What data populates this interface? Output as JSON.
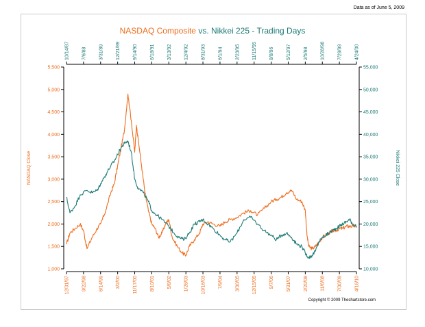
{
  "header": {
    "as_of": "Data as of June 5, 2009",
    "title_part1": "NASDAQ Composite",
    "title_part2": "vs. Nikkei 225 - Trading Days"
  },
  "footer": {
    "copyright": "Copyright © 2009 Thechartstore.com"
  },
  "colors": {
    "nasdaq": "#ef6b1a",
    "nikkei": "#1b7a75",
    "axis": "#000000"
  },
  "chart_data": {
    "type": "line",
    "title": "NASDAQ Composite vs. Nikkei 225 - Trading Days",
    "ylabel_left": "NASDAQ Close",
    "ylabel_right": "Nikkei 225 Close",
    "ylim_left": [
      1000,
      5500
    ],
    "ylim_right": [
      10000,
      55000
    ],
    "yticks_left": [
      "1,000",
      "1,500",
      "2,000",
      "2,500",
      "3,000",
      "3,500",
      "4,000",
      "4,500",
      "5,000",
      "5,500"
    ],
    "yticks_right": [
      "10,000",
      "15,000",
      "20,000",
      "25,000",
      "30,000",
      "35,000",
      "40,000",
      "45,000",
      "50,000",
      "55,000"
    ],
    "xticks_top": [
      "10/14/87",
      "7/6/88",
      "3/31/89",
      "12/21/89",
      "9/14/90",
      "6/18/91",
      "3/13/92",
      "12/4/92",
      "8/31/93",
      "6/1/94",
      "2/23/95",
      "11/15/95",
      "8/8/96",
      "5/12/97",
      "2/5/98",
      "10/28/98",
      "7/29/99",
      "4/24/00"
    ],
    "xticks_bottom": [
      "12/31/97",
      "9/22/98",
      "6/14/99",
      "3/2/00",
      "11/17/00",
      "8/10/01",
      "5/8/02",
      "1/28/03",
      "10/16/03",
      "7/9/04",
      "3/30/05",
      "12/15/05",
      "9/7/06",
      "5/31/07",
      "2/20/08",
      "11/6/08",
      "7/30/09",
      "4/16/10"
    ],
    "grid": false,
    "series": [
      {
        "name": "NASDAQ Composite",
        "axis": "left",
        "x": [
          0,
          0.2,
          0.5,
          0.8,
          1,
          1.2,
          1.5,
          1.8,
          2,
          2.3,
          2.6,
          2.8,
          3,
          3.2,
          3.4,
          3.6,
          3.8,
          4,
          4.1,
          4.2,
          4.4,
          4.6,
          4.8,
          5,
          5.2,
          5.4,
          5.6,
          5.8,
          6,
          6.2,
          6.5,
          6.8,
          7,
          7.2,
          7.5,
          7.8,
          8,
          8.3,
          8.6,
          9,
          9.3,
          9.6,
          10,
          10.4,
          10.8,
          11.2,
          11.6,
          12,
          12.3,
          12.6,
          12.9,
          13.2,
          13.5,
          13.8,
          14,
          14.1,
          14.2,
          14.4,
          14.6,
          14.8,
          15,
          15.2,
          15.4,
          15.6,
          15.8,
          16,
          16.2,
          16.4,
          16.6,
          16.8,
          17
        ],
        "y": [
          1550,
          1800,
          1900,
          2000,
          1850,
          1450,
          1700,
          1900,
          2000,
          2300,
          2700,
          2900,
          3300,
          3700,
          4100,
          4900,
          4300,
          3600,
          4200,
          3900,
          3300,
          2700,
          2300,
          2000,
          1900,
          1700,
          1800,
          2000,
          2100,
          1700,
          1500,
          1350,
          1300,
          1500,
          1650,
          1800,
          2000,
          2050,
          2000,
          1950,
          2050,
          2100,
          2150,
          2250,
          2300,
          2200,
          2350,
          2500,
          2550,
          2600,
          2700,
          2750,
          2550,
          2500,
          2300,
          1750,
          1500,
          1450,
          1500,
          1600,
          1700,
          1750,
          1800,
          1850,
          1850,
          1900,
          1900,
          1950,
          1950,
          1950,
          1950
        ]
      },
      {
        "name": "Nikkei 225",
        "axis": "right",
        "x": [
          0,
          0.2,
          0.5,
          0.8,
          1.2,
          1.5,
          1.8,
          2,
          2.3,
          2.6,
          2.8,
          3,
          3.2,
          3.4,
          3.6,
          3.8,
          4,
          4.2,
          4.5,
          4.8,
          5,
          5.3,
          5.6,
          6,
          6.3,
          6.6,
          6.9,
          7.2,
          7.5,
          7.8,
          8,
          8.3,
          8.6,
          9,
          9.3,
          9.6,
          10,
          10.4,
          10.8,
          11.2,
          11.6,
          12,
          12.3,
          12.6,
          12.9,
          13.2,
          13.5,
          13.8,
          14,
          14.2,
          14.4,
          14.6,
          14.8,
          15,
          15.2,
          15.4,
          15.6,
          15.8,
          16,
          16.2,
          16.4,
          16.6,
          16.8,
          17
        ],
        "y": [
          26000,
          22500,
          24000,
          26500,
          27500,
          27000,
          27500,
          29000,
          31000,
          33000,
          34000,
          35500,
          37000,
          38000,
          38500,
          36000,
          30000,
          28000,
          27000,
          25000,
          23000,
          22000,
          21000,
          19500,
          18000,
          17000,
          16500,
          18000,
          20000,
          20500,
          21000,
          20000,
          19000,
          17500,
          16500,
          16000,
          18000,
          21000,
          21500,
          20000,
          18500,
          17500,
          16500,
          17500,
          18000,
          17000,
          15500,
          15000,
          13500,
          12500,
          13000,
          14000,
          16000,
          17000,
          17500,
          18000,
          18500,
          19000,
          19500,
          20000,
          20500,
          21000,
          20000,
          19500
        ]
      }
    ]
  }
}
